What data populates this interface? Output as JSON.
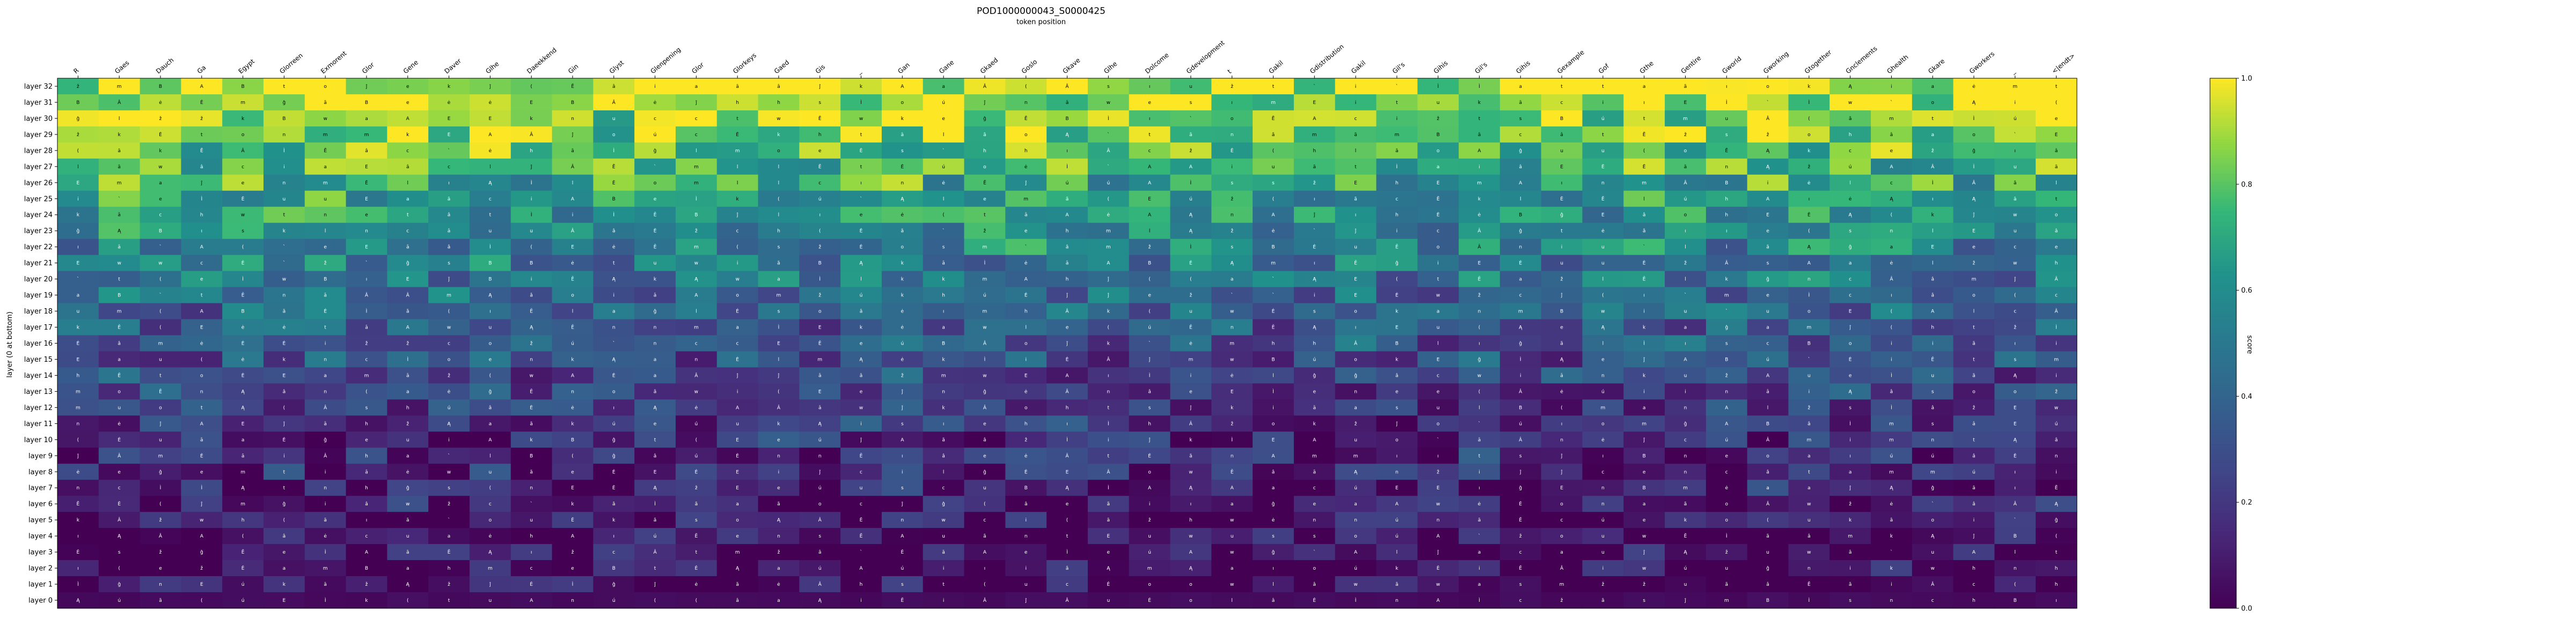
{
  "chart_data": {
    "type": "heatmap",
    "title": "POD1000000043_S0000425",
    "subtitle": "token position",
    "xlabel": "token position",
    "ylabel": "layer (0 at bottom)",
    "colorbar_label": "score",
    "colormap": "viridis",
    "value_range": [
      0.0,
      1.0
    ],
    "colorbar_ticks": [
      "0.0",
      "0.2",
      "0.4",
      "0.6",
      "0.8",
      "1.0"
    ],
    "x_tokens": [
      "R",
      "Gaes",
      "Dauch",
      "Ga",
      "Egypt",
      "Glorreen",
      "Exmorent",
      "Glor",
      "Gene",
      "Daver",
      "Glhe",
      "Daeekkend",
      "Gin",
      "Glyst",
      "Glenpening",
      "Glor",
      "Glorkeys",
      "Gaed",
      "Gis",
      "_",
      "Gan",
      "Gane",
      "Gkaed",
      "Goslo",
      "Gkave",
      "Glhe",
      "Dolcome",
      "Gdevelopment",
      "t",
      "Gakil",
      "Gdistribution",
      "Gakil",
      "Gil's",
      "Gihis",
      "Gil's",
      "Gihis",
      "Gexample",
      "Gof",
      "Gthe",
      "Gentire",
      "Gworld",
      "Gworking",
      "Gtogether",
      "Gnclements",
      "Ghealth",
      "Gkare",
      "Gworkers",
      "_",
      "<|endt>"
    ],
    "y_layers": [
      "layer 32",
      "layer 31",
      "layer 30",
      "layer 29",
      "layer 28",
      "layer 27",
      "layer 26",
      "layer 25",
      "layer 24",
      "layer 23",
      "layer 22",
      "layer 21",
      "layer 20",
      "layer 19",
      "layer 18",
      "layer 17",
      "layer 16",
      "layer 15",
      "layer 14",
      "layer 13",
      "layer 12",
      "layer 11",
      "layer 10",
      "layer 9",
      "layer 8",
      "layer 7",
      "layer 6",
      "layer 5",
      "layer 4",
      "layer 3",
      "layer 2",
      "layer 1",
      "layer 0"
    ],
    "cell_glyphs": [
      "A",
      "ĝ",
      "Ą",
      "a",
      "e",
      "E",
      "ĵ",
      "ā",
      "Ė",
      "w",
      "m",
      "l",
      "i",
      "n",
      "s",
      "(",
      "u",
      "B",
      "o",
      "Â",
      "Ĕ",
      "ú",
      "c",
      "Ì",
      "ė",
      "ã",
      "t",
      "k",
      "h",
      "â",
      "`",
      "ž",
      "ı"
    ],
    "grid": false,
    "colorbar_position": "right",
    "rows_ordering": "top row = layer 32, bottom row = layer 0",
    "values_note": "values estimated from viridis colors"
  }
}
